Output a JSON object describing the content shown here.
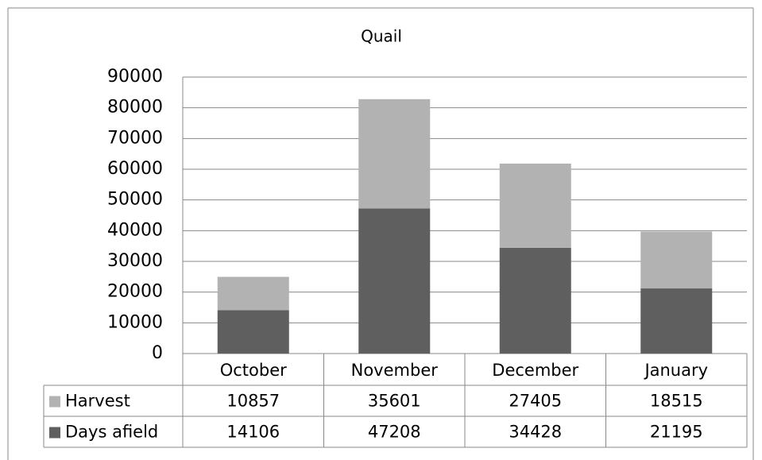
{
  "chart_data": {
    "type": "bar",
    "stacked": true,
    "title": "Quail",
    "categories": [
      "October",
      "November",
      "December",
      "January"
    ],
    "series": [
      {
        "name": "Harvest",
        "color": "#b2b2b2",
        "values": [
          10857,
          35601,
          27405,
          18515
        ]
      },
      {
        "name": "Days afield",
        "color": "#5f5f5f",
        "values": [
          14106,
          47208,
          34428,
          21195
        ]
      }
    ],
    "ylim": [
      0,
      90000
    ],
    "yticks": [
      0,
      10000,
      20000,
      30000,
      40000,
      50000,
      60000,
      70000,
      80000,
      90000
    ],
    "grid": true,
    "data_table": true
  }
}
